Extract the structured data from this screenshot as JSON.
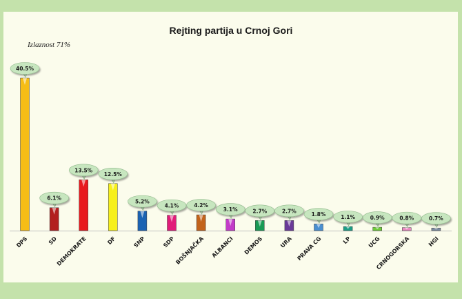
{
  "chart_data": {
    "type": "bar",
    "title": "Rejting partija u Crnoj Gori",
    "subtitle": "Izlaznost 71%",
    "categories": [
      "DPS",
      "SD",
      "DEMOKRATE",
      "DF",
      "SNP",
      "SDP",
      "BOŠNJAČKA",
      "ALBANCI",
      "DEMOS",
      "URA",
      "PRAVA CG",
      "LP",
      "UCG",
      "CRNOGORSKA",
      "HGI"
    ],
    "values": [
      40.5,
      6.1,
      13.5,
      12.5,
      5.2,
      4.1,
      4.2,
      3.1,
      2.7,
      2.7,
      1.8,
      1.1,
      0.9,
      0.8,
      0.7
    ],
    "labels": [
      "40.5%",
      "6.1%",
      "13.5%",
      "12.5%",
      "5.2%",
      "4.1%",
      "4.2%",
      "3.1%",
      "2.7%",
      "2.7%",
      "1.8%",
      "1.1%",
      "0.9%",
      "0.8%",
      "0.7%"
    ],
    "colors": [
      "#f6bd16",
      "#b21f1f",
      "#e8191e",
      "#f7f01c",
      "#1b63b3",
      "#e11c79",
      "#c2631b",
      "#c33cc8",
      "#1a9a55",
      "#6a3a98",
      "#4a8fd0",
      "#1c9e86",
      "#6fcb3a",
      "#e88ac0",
      "#7a8ba0"
    ],
    "ylim": [
      0,
      42
    ],
    "xlabel": "",
    "ylabel": "",
    "grid": false,
    "legend": "none"
  }
}
